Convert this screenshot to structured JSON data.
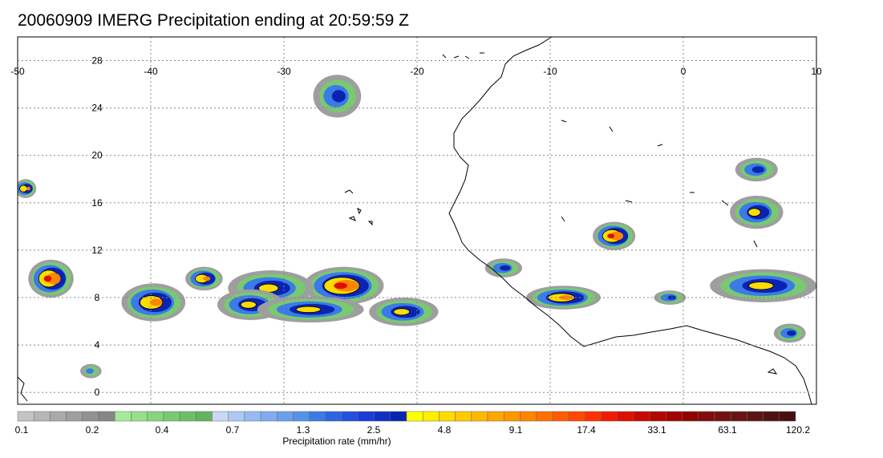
{
  "title": "20060909 IMERG Precipitation ending at 20:59:59 Z",
  "map": {
    "lon_range": [
      -50,
      10
    ],
    "lat_range": [
      -1,
      30
    ],
    "lon_ticks": [
      "-50",
      "-40",
      "-30",
      "-20",
      "-10",
      "0",
      "10"
    ],
    "lat_ticks": [
      "28",
      "24",
      "20",
      "16",
      "12",
      "8",
      "4",
      "0"
    ],
    "grid": true,
    "rain_cells": [
      {
        "lon": -25.5,
        "lat": 9.0,
        "rlon": 3.0,
        "rlat": 1.6,
        "peak": 6
      },
      {
        "lon": -31.0,
        "lat": 8.8,
        "rlon": 3.2,
        "rlat": 1.5,
        "peak": 4
      },
      {
        "lon": -32.5,
        "lat": 7.4,
        "rlon": 2.5,
        "rlat": 1.3,
        "peak": 4
      },
      {
        "lon": -28.0,
        "lat": 7.0,
        "rlon": 4.0,
        "rlat": 1.1,
        "peak": 4
      },
      {
        "lon": -21.0,
        "lat": 6.8,
        "rlon": 2.6,
        "rlat": 1.2,
        "peak": 4
      },
      {
        "lon": -39.8,
        "lat": 7.6,
        "rlon": 2.4,
        "rlat": 1.6,
        "peak": 5
      },
      {
        "lon": -36.0,
        "lat": 9.6,
        "rlon": 1.4,
        "rlat": 1.0,
        "peak": 5
      },
      {
        "lon": -47.5,
        "lat": 9.6,
        "rlon": 1.7,
        "rlat": 1.6,
        "peak": 6
      },
      {
        "lon": -26.0,
        "lat": 25.0,
        "rlon": 1.8,
        "rlat": 1.8,
        "peak": 3
      },
      {
        "lon": -49.4,
        "lat": 17.2,
        "rlon": 0.8,
        "rlat": 0.8,
        "peak": 5
      },
      {
        "lon": -9.0,
        "lat": 8.0,
        "rlon": 2.8,
        "rlat": 1.0,
        "peak": 5
      },
      {
        "lon": -5.2,
        "lat": 13.2,
        "rlon": 1.6,
        "rlat": 1.2,
        "peak": 6
      },
      {
        "lon": 6.0,
        "lat": 9.0,
        "rlon": 4.0,
        "rlat": 1.4,
        "peak": 4
      },
      {
        "lon": 5.5,
        "lat": 15.2,
        "rlon": 2.0,
        "rlat": 1.4,
        "peak": 4
      },
      {
        "lon": 5.5,
        "lat": 18.8,
        "rlon": 1.6,
        "rlat": 1.0,
        "peak": 3
      },
      {
        "lon": -1.0,
        "lat": 8.0,
        "rlon": 1.2,
        "rlat": 0.6,
        "peak": 3
      },
      {
        "lon": -13.5,
        "lat": 10.5,
        "rlon": 1.4,
        "rlat": 0.8,
        "peak": 3
      },
      {
        "lon": 8.0,
        "lat": 5.0,
        "rlon": 1.2,
        "rlat": 0.8,
        "peak": 3
      },
      {
        "lon": -44.5,
        "lat": 1.8,
        "rlon": 0.8,
        "rlat": 0.6,
        "peak": 2
      }
    ]
  },
  "colorbar": {
    "title": "Precipitation rate (mm/hr)",
    "labels": [
      "0.1",
      "0.2",
      "0.4",
      "0.7",
      "1.3",
      "2.5",
      "4.8",
      "9.1",
      "17.4",
      "33.1",
      "63.1",
      "120.2"
    ],
    "colors": [
      "#c4c4c4",
      "#b6b6b6",
      "#aaaaaa",
      "#9e9e9e",
      "#929292",
      "#868686",
      "#a6ea9c",
      "#96e08a",
      "#86d57c",
      "#78ca70",
      "#6cbf66",
      "#62b45e",
      "#cad8f8",
      "#aec8f6",
      "#96baf2",
      "#80acee",
      "#6aa0ea",
      "#5494e6",
      "#3c7ae8",
      "#2e64e4",
      "#2450e0",
      "#1a3cd8",
      "#1030c4",
      "#0a24b0",
      "#ffff00",
      "#ffee00",
      "#ffdc00",
      "#ffca00",
      "#ffb800",
      "#ffa600",
      "#ff9600",
      "#ff8400",
      "#ff7000",
      "#ff5c00",
      "#ff4800",
      "#ff3000",
      "#f01c00",
      "#dc1000",
      "#c80800",
      "#b40600",
      "#a20400",
      "#900400",
      "#800c0c",
      "#741010",
      "#681414",
      "#5c1414",
      "#501212",
      "#461010"
    ],
    "intensity_colors": [
      "#9e9e9e",
      "#78ca70",
      "#3c7ae8",
      "#0a24b0",
      "#ffdc00",
      "#ff8400",
      "#dc1000"
    ]
  }
}
